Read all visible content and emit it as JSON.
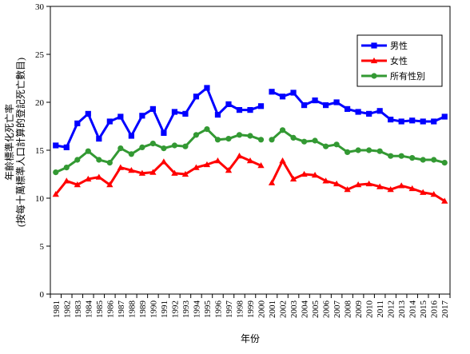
{
  "chart_data": {
    "type": "line",
    "title": "",
    "xlabel": "年份",
    "ylabel": [
      "年齡標準化死亡率",
      "(按每十萬標準人口計算的登記死亡數目)"
    ],
    "ylim": [
      0,
      30
    ],
    "yticks": [
      0,
      5,
      10,
      15,
      20,
      25,
      30
    ],
    "grid": false,
    "legend_position": "top-right",
    "x": [
      1981,
      1982,
      1983,
      1984,
      1985,
      1986,
      1987,
      1988,
      1989,
      1990,
      1991,
      1992,
      1993,
      1994,
      1995,
      1996,
      1997,
      1998,
      1999,
      2000,
      2001,
      2002,
      2003,
      2004,
      2005,
      2006,
      2007,
      2008,
      2009,
      2010,
      2011,
      2012,
      2013,
      2014,
      2015,
      2016,
      2017
    ],
    "x_tick_labels": [
      "1981",
      "1982",
      "1983",
      "1984",
      "1985",
      "1986",
      "1987",
      "1988",
      "1989",
      "1990",
      "1991",
      "1992",
      "1993",
      "1994",
      "1995",
      "1996",
      "1997",
      "1998",
      "1999",
      "2000",
      "2001",
      "2002",
      "2003",
      "2004",
      "2005",
      "2006",
      "2007",
      "2008",
      "2009",
      "2010",
      "2011",
      "2012",
      "2013",
      "2014",
      "2015",
      "2016",
      "2017"
    ],
    "series": [
      {
        "name": "男性",
        "color": "#0000ff",
        "marker": "square",
        "values": [
          15.5,
          15.3,
          17.8,
          18.8,
          16.2,
          18.0,
          18.5,
          16.5,
          18.6,
          19.3,
          16.8,
          19.0,
          18.8,
          20.6,
          21.5,
          18.7,
          19.8,
          19.2,
          19.2,
          19.6,
          21.1,
          20.6,
          21.0,
          19.7,
          20.2,
          19.7,
          20.0,
          19.3,
          19.0,
          18.8,
          19.1,
          18.2,
          18.0,
          18.1,
          18.0,
          18.0,
          18.5
        ]
      },
      {
        "name": "女性",
        "color": "#ff0000",
        "marker": "triangle",
        "values": [
          10.4,
          11.8,
          11.4,
          12.0,
          12.2,
          11.4,
          13.2,
          12.9,
          12.6,
          12.7,
          13.8,
          12.6,
          12.5,
          13.2,
          13.5,
          13.9,
          12.9,
          14.4,
          13.9,
          13.4,
          11.6,
          13.9,
          12.0,
          12.5,
          12.4,
          11.8,
          11.5,
          10.9,
          11.4,
          11.5,
          11.2,
          10.9,
          11.3,
          11.0,
          10.6,
          10.4,
          9.7
        ]
      },
      {
        "name": "所有性別",
        "color": "#339933",
        "marker": "circle",
        "values": [
          12.7,
          13.2,
          14.0,
          14.9,
          14.0,
          13.7,
          15.2,
          14.6,
          15.3,
          15.7,
          15.2,
          15.5,
          15.4,
          16.6,
          17.2,
          16.1,
          16.2,
          16.6,
          16.5,
          16.1,
          16.1,
          17.1,
          16.3,
          15.9,
          16.0,
          15.4,
          15.6,
          14.8,
          15.0,
          15.0,
          14.9,
          14.4,
          14.4,
          14.2,
          14.0,
          14.0,
          13.7
        ]
      }
    ]
  }
}
